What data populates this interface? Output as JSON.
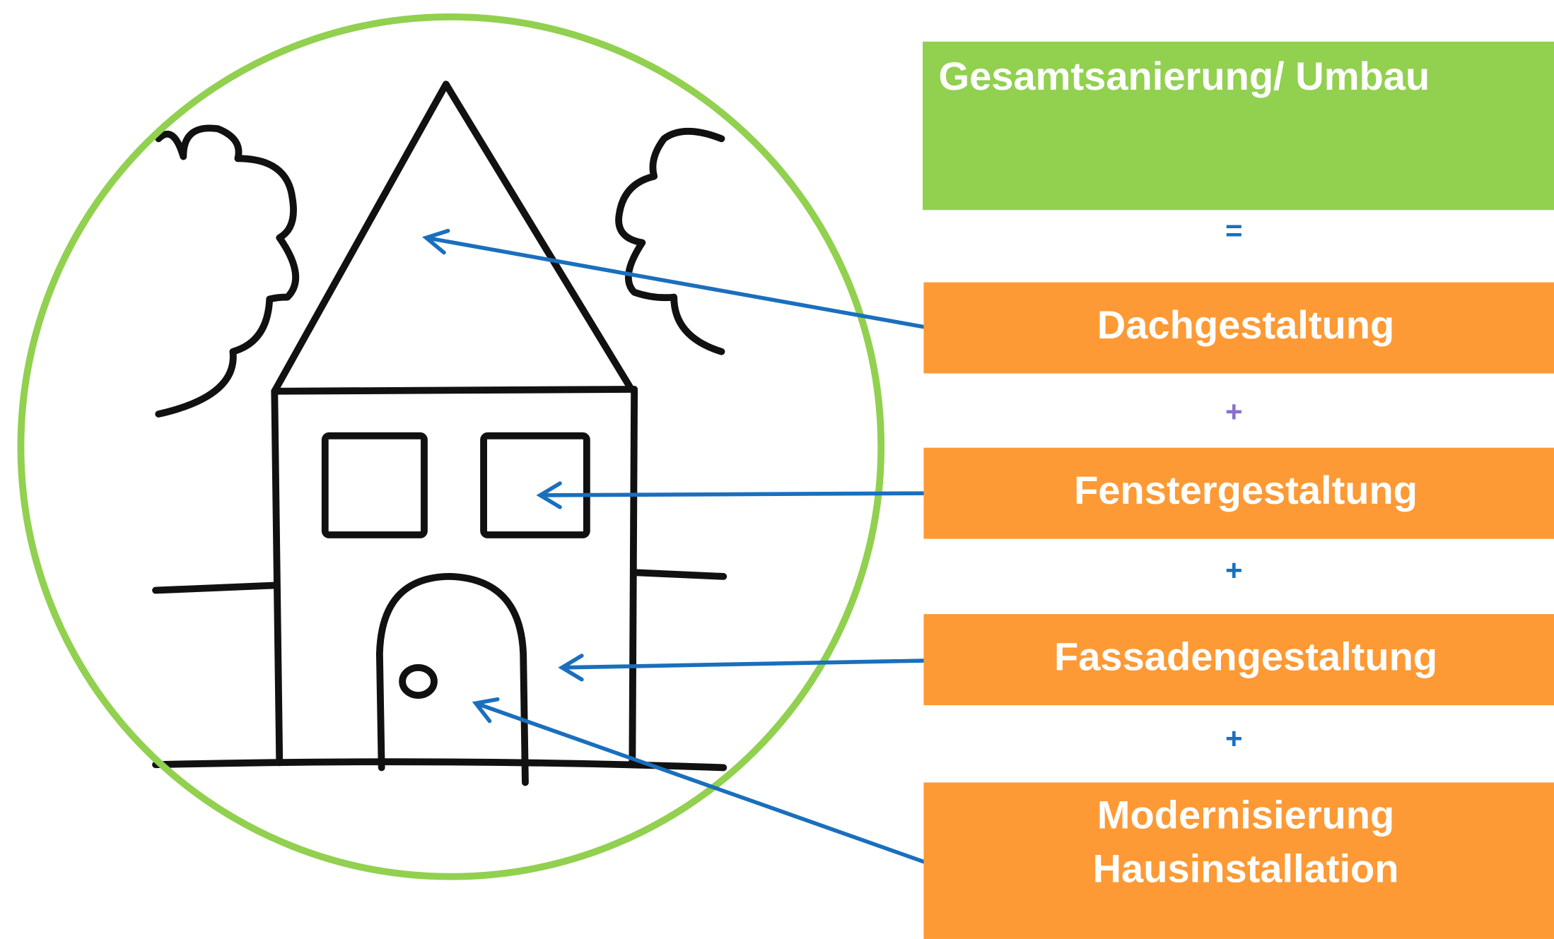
{
  "header": {
    "title": "Gesamtsanierung/ Umbau"
  },
  "operators": [
    "=",
    "+",
    "+",
    "+"
  ],
  "boxes": [
    {
      "lines": [
        "Dachgestaltung"
      ]
    },
    {
      "lines": [
        "Fenstergestaltung"
      ]
    },
    {
      "lines": [
        "Fassadengestaltung"
      ]
    },
    {
      "lines": [
        "Modernisierung",
        "Hausinstallation"
      ]
    }
  ]
}
